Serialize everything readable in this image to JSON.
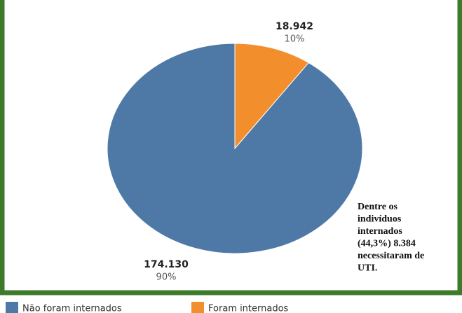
{
  "chart_data": {
    "type": "pie",
    "categories": [
      "Não foram internados",
      "Foram internados"
    ],
    "values": [
      174130,
      18942
    ],
    "value_labels": [
      "174.130",
      "18.942"
    ],
    "percent_values": [
      90,
      10
    ],
    "percent_labels": [
      "90%",
      "10%"
    ],
    "colors": [
      "#4e79a7",
      "#f28e2b"
    ],
    "annotation": [
      "Dentre os",
      "indivíduos",
      "internados",
      "(44,3%)   8.384",
      "necessitaram de",
      "UTI."
    ]
  }
}
